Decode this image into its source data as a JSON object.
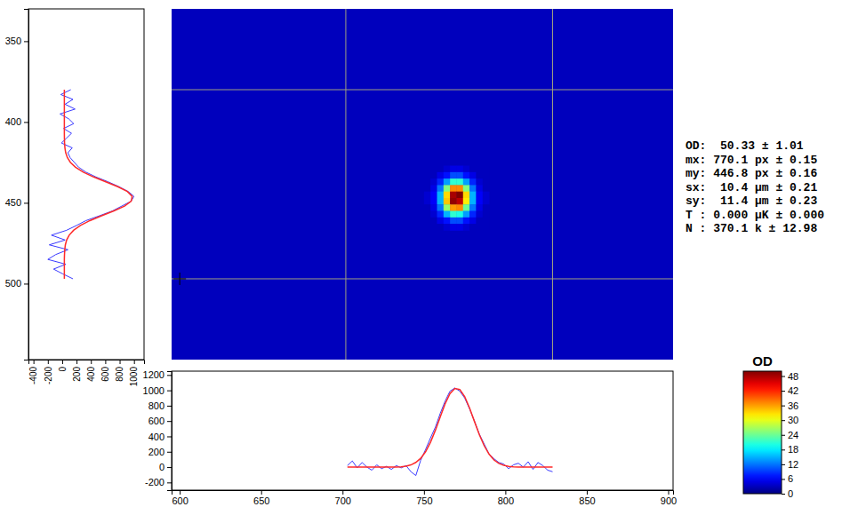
{
  "chart_data": [
    {
      "type": "heatmap",
      "xlim": [
        595,
        903
      ],
      "ylim": [
        330,
        547
      ],
      "x": [
        752,
        756,
        760,
        764,
        768,
        772,
        776,
        780,
        784,
        788
      ],
      "y": [
        429,
        433,
        437,
        441,
        445,
        449,
        453,
        457,
        461,
        465
      ],
      "values": [
        [
          3,
          3,
          3,
          4,
          5,
          5,
          4,
          3,
          3,
          3
        ],
        [
          3,
          3,
          5,
          7,
          10,
          10,
          7,
          5,
          3,
          3
        ],
        [
          3,
          4,
          8,
          14,
          21,
          21,
          14,
          8,
          4,
          3
        ],
        [
          3,
          5,
          12,
          25,
          37,
          37,
          25,
          12,
          5,
          3
        ],
        [
          4,
          6,
          15,
          33,
          48,
          50,
          33,
          15,
          6,
          4
        ],
        [
          4,
          6,
          15,
          34,
          49,
          47,
          32,
          15,
          6,
          4
        ],
        [
          3,
          5,
          12,
          26,
          36,
          37,
          24,
          12,
          5,
          3
        ],
        [
          3,
          4,
          8,
          15,
          21,
          20,
          14,
          8,
          4,
          3
        ],
        [
          3,
          3,
          5,
          7,
          10,
          10,
          7,
          5,
          3,
          3
        ],
        [
          3,
          3,
          3,
          4,
          5,
          5,
          4,
          3,
          3,
          3
        ]
      ],
      "background": 3,
      "roi": {
        "x": [
          702,
          829
        ],
        "y": [
          380,
          497
        ]
      },
      "cursor": {
        "x": 600,
        "y": 497
      },
      "colorbar": {
        "title": "OD",
        "range": [
          0,
          50
        ],
        "ticks": [
          0,
          6,
          12,
          18,
          24,
          30,
          36,
          42,
          48
        ]
      },
      "annotations": [
        "OD:  50.33 ± 1.01",
        "mx: 770.1 px ± 0.15",
        "my: 446.8 px ± 0.16",
        "sx:  10.4 µm ± 0.21",
        "sy:  11.4 µm ± 0.23",
        "T : 0.000 µK ± 0.000",
        "N : 370.1 k ± 12.98"
      ]
    },
    {
      "type": "line",
      "orientation": "horizontal",
      "xlim": [
        -470,
        1140
      ],
      "xticks": [
        -400,
        -200,
        0,
        200,
        400,
        600,
        800,
        1000
      ],
      "ylim": [
        330,
        547
      ],
      "yticks": [
        350,
        400,
        450,
        500
      ],
      "y": [
        380,
        383,
        386,
        389,
        392,
        395,
        398,
        401,
        404,
        407,
        410,
        413,
        416,
        419,
        422,
        425,
        428,
        431,
        434,
        437,
        440,
        443,
        446,
        449,
        452,
        455,
        458,
        461,
        464,
        467,
        470,
        473,
        476,
        479,
        482,
        485,
        488,
        491,
        494,
        497
      ],
      "series": [
        {
          "color": "#3a3aff",
          "values": [
            120,
            -20,
            150,
            40,
            180,
            -30,
            90,
            160,
            20,
            130,
            60,
            -10,
            140,
            80,
            110,
            170,
            230,
            330,
            470,
            640,
            790,
            920,
            1000,
            960,
            830,
            700,
            520,
            330,
            200,
            60,
            -150,
            40,
            -180,
            80,
            -90,
            -200,
            50,
            -120,
            10,
            150
          ]
        },
        {
          "color": "#ff2a2a",
          "values": [
            30,
            30,
            30,
            30,
            30,
            30,
            30,
            30,
            30,
            30,
            31,
            33,
            38,
            49,
            72,
            115,
            186,
            294,
            438,
            607,
            774,
            907,
            975,
            961,
            868,
            720,
            549,
            386,
            254,
            158,
            97,
            62,
            44,
            36,
            32,
            30,
            30,
            30,
            30,
            30
          ]
        }
      ]
    },
    {
      "type": "line",
      "xlim": [
        595,
        903
      ],
      "xticks": [
        600,
        650,
        700,
        750,
        800,
        850,
        900
      ],
      "ylim": [
        -300,
        1250
      ],
      "yticks": [
        -200,
        0,
        200,
        400,
        600,
        800,
        1000,
        1200
      ],
      "x": [
        703,
        706,
        709,
        712,
        715,
        718,
        721,
        724,
        727,
        730,
        733,
        736,
        739,
        742,
        745,
        748,
        751,
        754,
        757,
        760,
        763,
        766,
        769,
        772,
        775,
        778,
        781,
        784,
        787,
        790,
        793,
        796,
        799,
        802,
        805,
        808,
        811,
        814,
        817,
        820,
        823,
        826,
        829
      ],
      "series": [
        {
          "color": "#3a3aff",
          "values": [
            20,
            80,
            -10,
            60,
            0,
            -40,
            30,
            -20,
            10,
            -30,
            20,
            -10,
            20,
            -60,
            -110,
            90,
            230,
            380,
            520,
            700,
            860,
            990,
            1030,
            990,
            900,
            760,
            600,
            430,
            300,
            170,
            110,
            60,
            40,
            -20,
            30,
            50,
            0,
            70,
            -30,
            60,
            20,
            -40,
            -60
          ]
        },
        {
          "color": "#ff2a2a",
          "values": [
            0,
            0,
            0,
            0,
            0,
            0,
            0,
            0,
            0,
            1,
            2,
            5,
            13,
            29,
            61,
            115,
            200,
            323,
            479,
            654,
            825,
            958,
            1025,
            1012,
            920,
            770,
            595,
            423,
            278,
            168,
            93,
            48,
            23,
            10,
            4,
            1,
            0,
            0,
            0,
            0,
            0,
            0,
            0
          ]
        }
      ]
    }
  ]
}
